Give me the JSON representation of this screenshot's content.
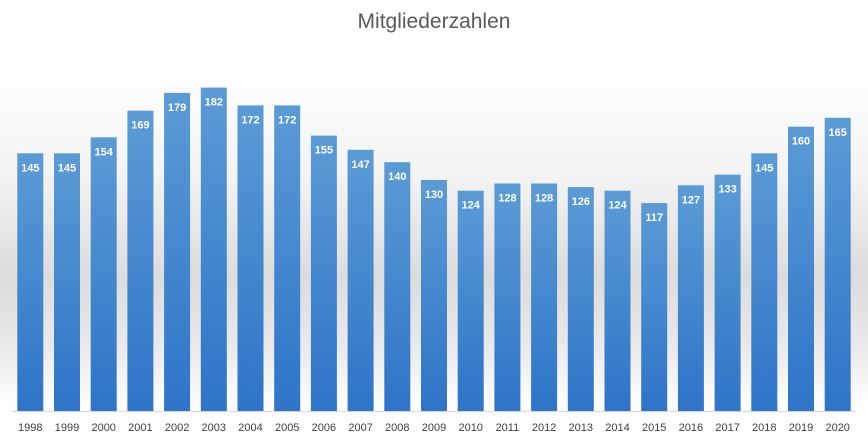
{
  "chart_data": {
    "type": "bar",
    "title": "Mitgliederzahlen",
    "categories": [
      "1998",
      "1999",
      "2000",
      "2001",
      "2002",
      "2003",
      "2004",
      "2005",
      "2006",
      "2007",
      "2008",
      "2009",
      "2010",
      "2011",
      "2012",
      "2013",
      "2014",
      "2015",
      "2016",
      "2017",
      "2018",
      "2019",
      "2020"
    ],
    "values": [
      145,
      145,
      154,
      169,
      179,
      182,
      172,
      172,
      155,
      147,
      140,
      130,
      124,
      128,
      128,
      126,
      124,
      117,
      127,
      133,
      145,
      160,
      165
    ],
    "data_labels": true,
    "legend": "none",
    "grid": false,
    "colors": {
      "bar_top": "#5b9bd5",
      "bar_bottom": "#2e74c8",
      "axis": "#d9d9d9"
    }
  }
}
